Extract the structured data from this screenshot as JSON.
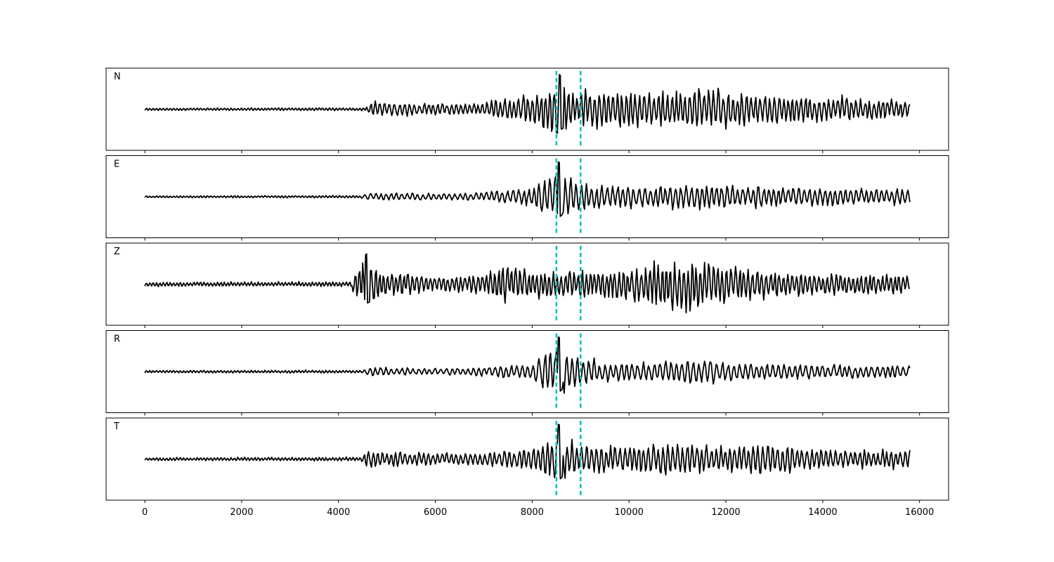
{
  "chart_data": {
    "type": "line",
    "xlabel": "",
    "ylabel": "",
    "xlim": [
      -800,
      16600
    ],
    "xticks": [
      0,
      2000,
      4000,
      6000,
      8000,
      10000,
      12000,
      14000,
      16000
    ],
    "x_range": [
      0,
      15800
    ],
    "marker_lines": [
      8500,
      9000
    ],
    "colors": {
      "trace": "#000000",
      "marker": "#00bfbf",
      "frame": "#000000"
    },
    "panels": [
      {
        "label": "N",
        "onset": 4600,
        "peak": 8600,
        "envelope": [
          [
            0,
            0.04
          ],
          [
            4550,
            0.05
          ],
          [
            4700,
            0.25
          ],
          [
            5200,
            0.22
          ],
          [
            6000,
            0.18
          ],
          [
            7000,
            0.2
          ],
          [
            7300,
            0.4
          ],
          [
            8000,
            0.45
          ],
          [
            8550,
            0.95
          ],
          [
            8700,
            0.8
          ],
          [
            9000,
            0.6
          ],
          [
            9600,
            0.65
          ],
          [
            10500,
            0.55
          ],
          [
            11500,
            0.75
          ],
          [
            12200,
            0.55
          ],
          [
            13000,
            0.5
          ],
          [
            14000,
            0.38
          ],
          [
            15000,
            0.35
          ],
          [
            15800,
            0.28
          ]
        ],
        "wave": {
          "period": 95,
          "seed": 11
        },
        "ylim": [
          -1.0,
          1.0
        ]
      },
      {
        "label": "E",
        "onset": 4500,
        "peak": 8580,
        "envelope": [
          [
            0,
            0.03
          ],
          [
            4450,
            0.04
          ],
          [
            4600,
            0.12
          ],
          [
            6000,
            0.1
          ],
          [
            7000,
            0.14
          ],
          [
            8000,
            0.3
          ],
          [
            8550,
            0.95
          ],
          [
            8700,
            0.65
          ],
          [
            9000,
            0.45
          ],
          [
            9500,
            0.35
          ],
          [
            10500,
            0.35
          ],
          [
            11400,
            0.42
          ],
          [
            12500,
            0.33
          ],
          [
            14000,
            0.3
          ],
          [
            15800,
            0.26
          ]
        ],
        "wave": {
          "period": 110,
          "seed": 23
        },
        "ylim": [
          -1.0,
          1.0
        ]
      },
      {
        "label": "Z",
        "onset": 4300,
        "peak": 4600,
        "envelope": [
          [
            0,
            0.07
          ],
          [
            4250,
            0.08
          ],
          [
            4400,
            0.55
          ],
          [
            4600,
            0.85
          ],
          [
            4900,
            0.45
          ],
          [
            6000,
            0.25
          ],
          [
            7000,
            0.35
          ],
          [
            7400,
            0.7
          ],
          [
            8000,
            0.45
          ],
          [
            9000,
            0.45
          ],
          [
            10000,
            0.5
          ],
          [
            10500,
            0.8
          ],
          [
            11500,
            0.8
          ],
          [
            12500,
            0.5
          ],
          [
            14000,
            0.35
          ],
          [
            15800,
            0.3
          ]
        ],
        "wave": {
          "period": 90,
          "seed": 37
        },
        "ylim": [
          -1.0,
          1.0
        ]
      },
      {
        "label": "R",
        "onset": 4500,
        "peak": 8580,
        "envelope": [
          [
            0,
            0.04
          ],
          [
            4450,
            0.05
          ],
          [
            4700,
            0.14
          ],
          [
            6000,
            0.1
          ],
          [
            7000,
            0.15
          ],
          [
            8000,
            0.28
          ],
          [
            8550,
            0.95
          ],
          [
            8700,
            0.6
          ],
          [
            9000,
            0.5
          ],
          [
            9500,
            0.3
          ],
          [
            10500,
            0.3
          ],
          [
            11500,
            0.42
          ],
          [
            12300,
            0.28
          ],
          [
            14000,
            0.22
          ],
          [
            15800,
            0.2
          ]
        ],
        "wave": {
          "period": 115,
          "seed": 41
        },
        "ylim": [
          -1.0,
          1.0
        ]
      },
      {
        "label": "T",
        "onset": 4500,
        "peak": 8580,
        "envelope": [
          [
            0,
            0.05
          ],
          [
            4450,
            0.06
          ],
          [
            4600,
            0.3
          ],
          [
            6000,
            0.2
          ],
          [
            7000,
            0.2
          ],
          [
            8000,
            0.35
          ],
          [
            8550,
            0.95
          ],
          [
            8700,
            0.65
          ],
          [
            9000,
            0.5
          ],
          [
            10000,
            0.45
          ],
          [
            11000,
            0.55
          ],
          [
            12000,
            0.4
          ],
          [
            12900,
            0.55
          ],
          [
            14000,
            0.32
          ],
          [
            15800,
            0.3
          ]
        ],
        "wave": {
          "period": 100,
          "seed": 53
        },
        "ylim": [
          -1.0,
          1.0
        ]
      }
    ]
  }
}
